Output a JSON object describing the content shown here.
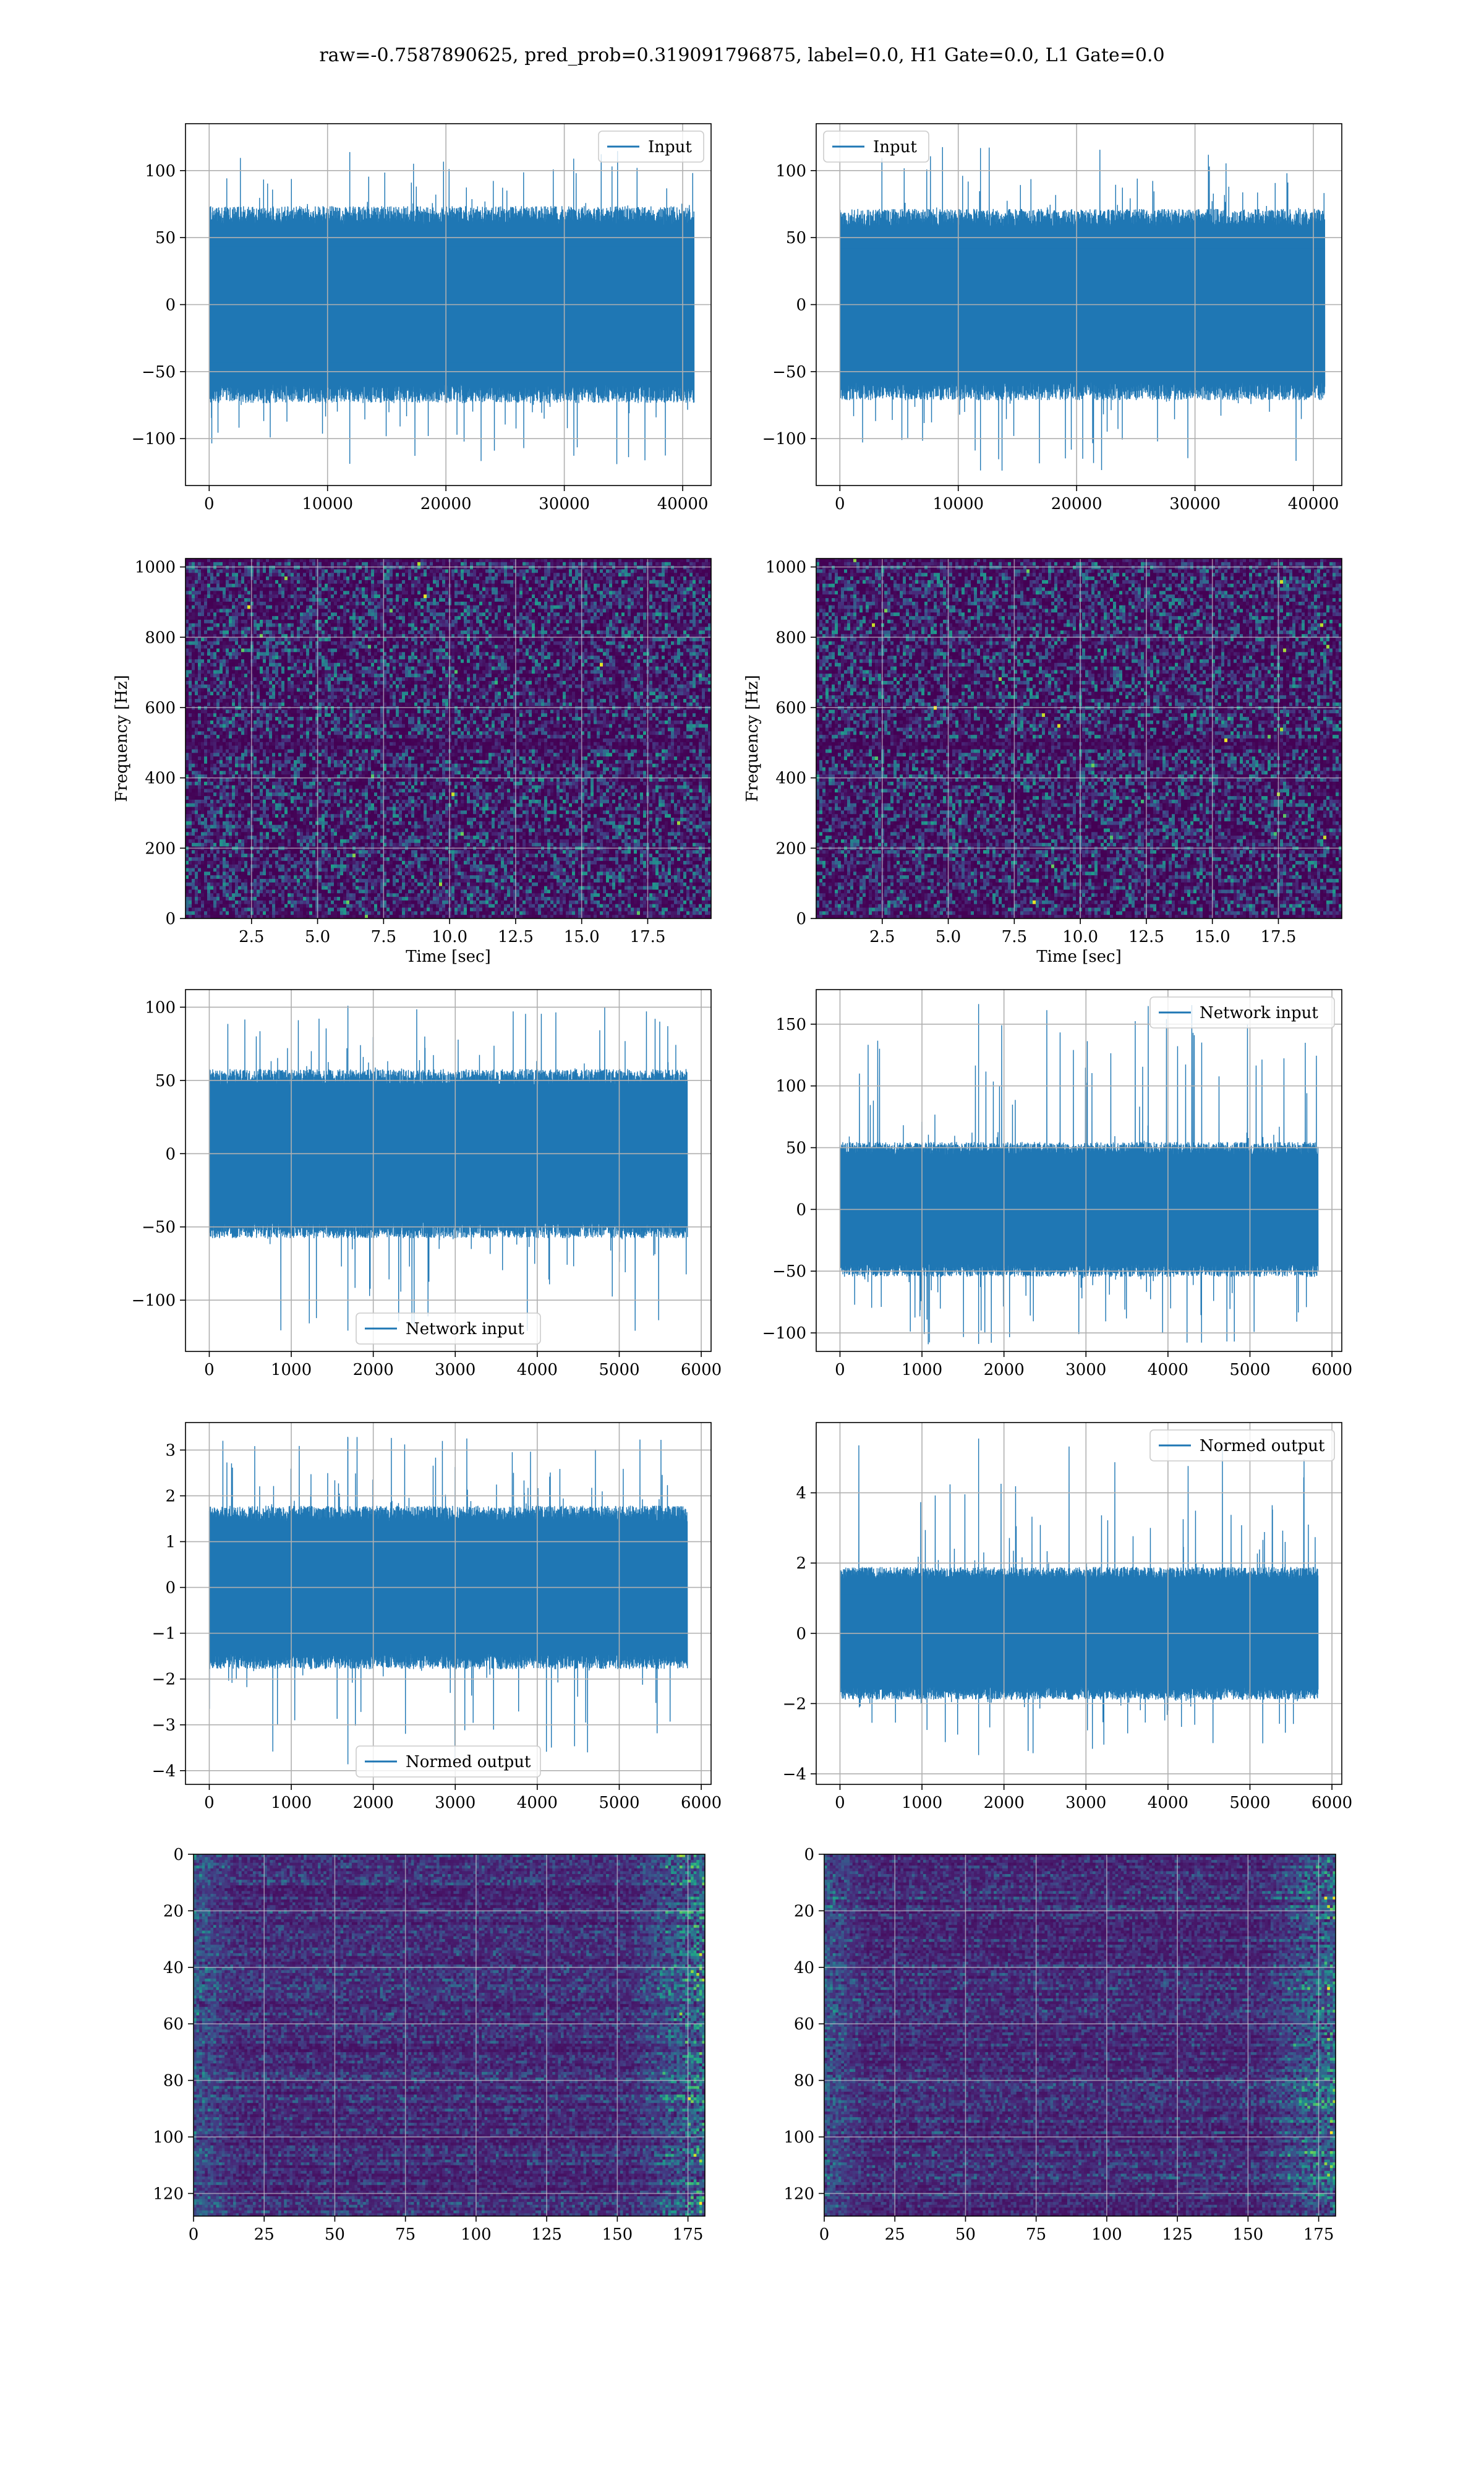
{
  "figure": {
    "suptitle": "raw=-0.7587890625, pred_prob=0.319091796875, label=0.0, H1 Gate=0.0, L1 Gate=0.0",
    "background": "#ffffff"
  },
  "colors": {
    "series": "#1f77b4",
    "grid": "#b0b0b0",
    "spine": "#000000",
    "legend_border": "#cccccc",
    "viridis": [
      "#440154",
      "#482878",
      "#3e4989",
      "#31688e",
      "#26828e",
      "#1f9e89",
      "#35b779",
      "#6ece58",
      "#b5de2b",
      "#fde725"
    ]
  },
  "chart_data": [
    {
      "id": "c1",
      "type": "line",
      "grid": true,
      "xticks": [
        "0",
        "10000",
        "20000",
        "30000",
        "40000"
      ],
      "yticks": [
        "100",
        "50",
        "0",
        "−50",
        "−100"
      ],
      "xlabel": "",
      "ylabel": "",
      "xlim": [
        -2000,
        42400
      ],
      "ylim": [
        -135,
        135
      ],
      "legend": {
        "labels": [
          "Input"
        ],
        "placement": "upper right"
      },
      "series": [
        {
          "name": "Input",
          "x_range": [
            0,
            40960
          ],
          "envelope": [
            -70,
            70
          ],
          "spikes": [
            -120,
            115
          ]
        }
      ]
    },
    {
      "id": "c2",
      "type": "line",
      "grid": true,
      "xticks": [
        "0",
        "10000",
        "20000",
        "30000",
        "40000"
      ],
      "yticks": [
        "100",
        "50",
        "0",
        "−50",
        "−100"
      ],
      "xlabel": "",
      "ylabel": "",
      "xlim": [
        -2000,
        42400
      ],
      "ylim": [
        -135,
        135
      ],
      "legend": {
        "labels": [
          "Input"
        ],
        "placement": "upper left"
      },
      "series": [
        {
          "name": "Input",
          "x_range": [
            0,
            40960
          ],
          "envelope": [
            -68,
            68
          ],
          "spikes": [
            -125,
            118
          ]
        }
      ]
    },
    {
      "id": "c3",
      "type": "heatmap",
      "grid": true,
      "xticks": [
        "2.5",
        "5.0",
        "7.5",
        "10.0",
        "12.5",
        "15.0",
        "17.5"
      ],
      "yticks": [
        "0",
        "200",
        "400",
        "600",
        "800",
        "1000"
      ],
      "xlabel": "Time [sec]",
      "ylabel": "Frequency [Hz]",
      "xlim": [
        0,
        19.9
      ],
      "ylim": [
        0,
        1024
      ]
    },
    {
      "id": "c4",
      "type": "heatmap",
      "grid": true,
      "xticks": [
        "2.5",
        "5.0",
        "7.5",
        "10.0",
        "12.5",
        "15.0",
        "17.5"
      ],
      "yticks": [
        "0",
        "200",
        "400",
        "600",
        "800",
        "1000"
      ],
      "xlabel": "Time [sec]",
      "ylabel": "Frequency [Hz]",
      "xlim": [
        0,
        19.9
      ],
      "ylim": [
        0,
        1024
      ]
    },
    {
      "id": "c5",
      "type": "line",
      "grid": true,
      "xticks": [
        "0",
        "1000",
        "2000",
        "3000",
        "4000",
        "5000",
        "6000"
      ],
      "yticks": [
        "100",
        "50",
        "0",
        "−50",
        "−100"
      ],
      "xlabel": "",
      "ylabel": "",
      "xlim": [
        -290,
        6120
      ],
      "ylim": [
        -135,
        112
      ],
      "legend": {
        "labels": [
          "Network input"
        ],
        "placement": "lower center"
      },
      "series": [
        {
          "name": "Network input",
          "x_range": [
            0,
            5830
          ],
          "envelope": [
            -55,
            55
          ],
          "spikes": [
            -122,
            102
          ]
        }
      ]
    },
    {
      "id": "c6",
      "type": "line",
      "grid": true,
      "xticks": [
        "0",
        "1000",
        "2000",
        "3000",
        "4000",
        "5000",
        "6000"
      ],
      "yticks": [
        "150",
        "100",
        "50",
        "0",
        "−50",
        "−100"
      ],
      "xlabel": "",
      "ylabel": "",
      "xlim": [
        -290,
        6120
      ],
      "ylim": [
        -115,
        178
      ],
      "legend": {
        "labels": [
          "Network input"
        ],
        "placement": "upper right"
      },
      "series": [
        {
          "name": "Network input",
          "x_range": [
            0,
            5830
          ],
          "envelope": [
            -52,
            52
          ],
          "spikes": [
            -110,
            168
          ]
        }
      ]
    },
    {
      "id": "c7",
      "type": "line",
      "grid": true,
      "xticks": [
        "0",
        "1000",
        "2000",
        "3000",
        "4000",
        "5000",
        "6000"
      ],
      "yticks": [
        "3",
        "2",
        "1",
        "0",
        "−1",
        "−2",
        "−3",
        "−4"
      ],
      "xlabel": "",
      "ylabel": "",
      "xlim": [
        -290,
        6120
      ],
      "ylim": [
        -4.3,
        3.6
      ],
      "legend": {
        "labels": [
          "Normed output"
        ],
        "placement": "lower center"
      },
      "series": [
        {
          "name": "Normed output",
          "x_range": [
            0,
            5830
          ],
          "envelope": [
            -1.7,
            1.7
          ],
          "spikes": [
            -3.9,
            3.3
          ]
        }
      ]
    },
    {
      "id": "c8",
      "type": "line",
      "grid": true,
      "xticks": [
        "0",
        "1000",
        "2000",
        "3000",
        "4000",
        "5000",
        "6000"
      ],
      "yticks": [
        "4",
        "2",
        "0",
        "−2",
        "−4"
      ],
      "xlabel": "",
      "ylabel": "",
      "xlim": [
        -290,
        6120
      ],
      "ylim": [
        -4.3,
        6.0
      ],
      "legend": {
        "labels": [
          "Normed output"
        ],
        "placement": "upper right"
      },
      "series": [
        {
          "name": "Normed output",
          "x_range": [
            0,
            5830
          ],
          "envelope": [
            -1.8,
            1.8
          ],
          "spikes": [
            -3.5,
            5.6
          ]
        }
      ]
    },
    {
      "id": "c9",
      "type": "heatmap",
      "grid": true,
      "xticks": [
        "0",
        "25",
        "50",
        "75",
        "100",
        "125",
        "150",
        "175"
      ],
      "yticks": [
        "0",
        "20",
        "40",
        "60",
        "80",
        "100",
        "120"
      ],
      "xlabel": "",
      "ylabel": "",
      "xlim": [
        0,
        181
      ],
      "ylim": [
        128,
        0
      ]
    },
    {
      "id": "c10",
      "type": "heatmap",
      "grid": true,
      "xticks": [
        "0",
        "25",
        "50",
        "75",
        "100",
        "125",
        "150",
        "175"
      ],
      "yticks": [
        "0",
        "20",
        "40",
        "60",
        "80",
        "100",
        "120"
      ],
      "xlabel": "",
      "ylabel": "",
      "xlim": [
        0,
        181
      ],
      "ylim": [
        128,
        0
      ]
    }
  ]
}
